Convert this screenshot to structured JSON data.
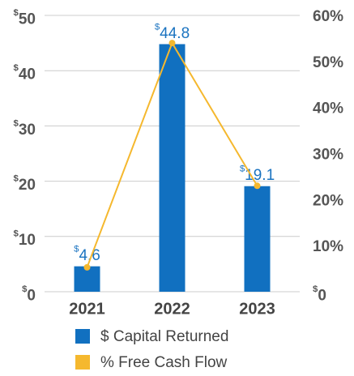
{
  "chart_data": {
    "type": "bar",
    "categories": [
      "2021",
      "2022",
      "2023"
    ],
    "series": [
      {
        "name": "$ Capital Returned",
        "type": "bar",
        "color": "#1170c0",
        "values": [
          4.6,
          44.8,
          19.1
        ],
        "value_labels": [
          "$4.6",
          "$44.8",
          "$19.1"
        ]
      },
      {
        "name": "% Free Cash Flow",
        "type": "line",
        "axis": "y2",
        "color": "#f5b82e",
        "values": [
          5.3,
          54,
          23
        ]
      }
    ],
    "ylim": [
      0,
      50
    ],
    "yticks": [
      {
        "value": 0,
        "label": "$0"
      },
      {
        "value": 10,
        "label": "$10"
      },
      {
        "value": 20,
        "label": "$20"
      },
      {
        "value": 30,
        "label": "$30"
      },
      {
        "value": 40,
        "label": "$40"
      },
      {
        "value": 50,
        "label": "$50"
      }
    ],
    "y2lim": [
      0,
      60
    ],
    "y2ticks": [
      {
        "value": 0,
        "label": "$0"
      },
      {
        "value": 10,
        "label": "10%"
      },
      {
        "value": 20,
        "label": "20%"
      },
      {
        "value": 30,
        "label": "30%"
      },
      {
        "value": 40,
        "label": "40%"
      },
      {
        "value": 50,
        "label": "50%"
      },
      {
        "value": 60,
        "label": "60%"
      }
    ],
    "grid": true
  }
}
